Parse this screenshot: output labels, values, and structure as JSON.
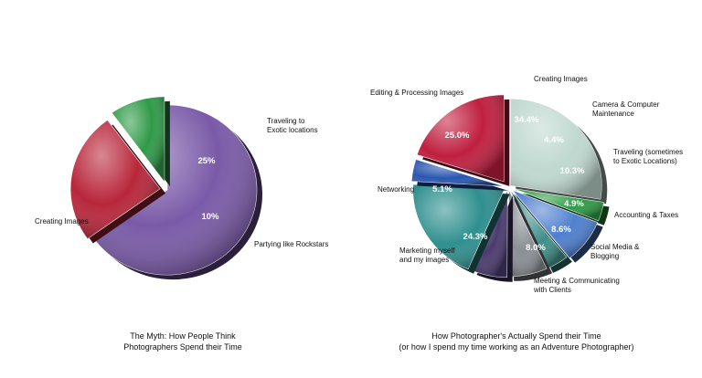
{
  "chart_data": [
    {
      "type": "pie",
      "title": [
        "The Myth: How People Think",
        "Photographers Spend their Time"
      ],
      "slices": [
        {
          "label": [
            "Creating Images"
          ],
          "value": 65,
          "value_label": "65%",
          "color": "#7a5aa8"
        },
        {
          "label": [
            "Traveling to",
            "Exotic locations"
          ],
          "value": 25,
          "value_label": "25%",
          "color": "#b8263a"
        },
        {
          "label": [
            "Partying like Rockstars"
          ],
          "value": 10,
          "value_label": "10%",
          "color": "#2f9a48"
        }
      ]
    },
    {
      "type": "pie",
      "title": [
        "How Photographer's Actually Spend their Time",
        "(or how I spend my time working as an Adventure Photographer)"
      ],
      "slices": [
        {
          "label": [
            "Creating Images"
          ],
          "value": 34.4,
          "value_label": "34.4%",
          "color": "#bfd8cf"
        },
        {
          "label": [
            "Camera & Computer",
            "Maintenance"
          ],
          "value": 4.4,
          "value_label": "4.4%",
          "color": "#2e9b45"
        },
        {
          "label": [
            "Traveling (sometimes",
            "to Exotic Locations)"
          ],
          "value": 10.3,
          "value_label": "10.3%",
          "color": "#4f7fcf"
        },
        {
          "label": [
            "Accounting & Taxes"
          ],
          "value": 4.9,
          "value_label": "4.9%",
          "color": "#3f8f8a"
        },
        {
          "label": [
            "Social Media &",
            "Blogging"
          ],
          "value": 8.6,
          "value_label": "8.6%",
          "color": "#8a8f95"
        },
        {
          "label": [
            "Meeting & Communicating",
            "with Clients"
          ],
          "value": 8.0,
          "value_label": "8.0%",
          "color": "#4a3a6e"
        },
        {
          "label": [
            "Marketing myself",
            "and my images"
          ],
          "value": 24.3,
          "value_label": "24.3%",
          "color": "#2f8f8f"
        },
        {
          "label": [
            "Networking"
          ],
          "value": 5.1,
          "value_label": "5.1%",
          "color": "#2a56b0"
        },
        {
          "label": [
            "Editing & Processing Images"
          ],
          "value": 25.0,
          "value_label": "25.0%",
          "color": "#c01f3f"
        }
      ]
    }
  ]
}
